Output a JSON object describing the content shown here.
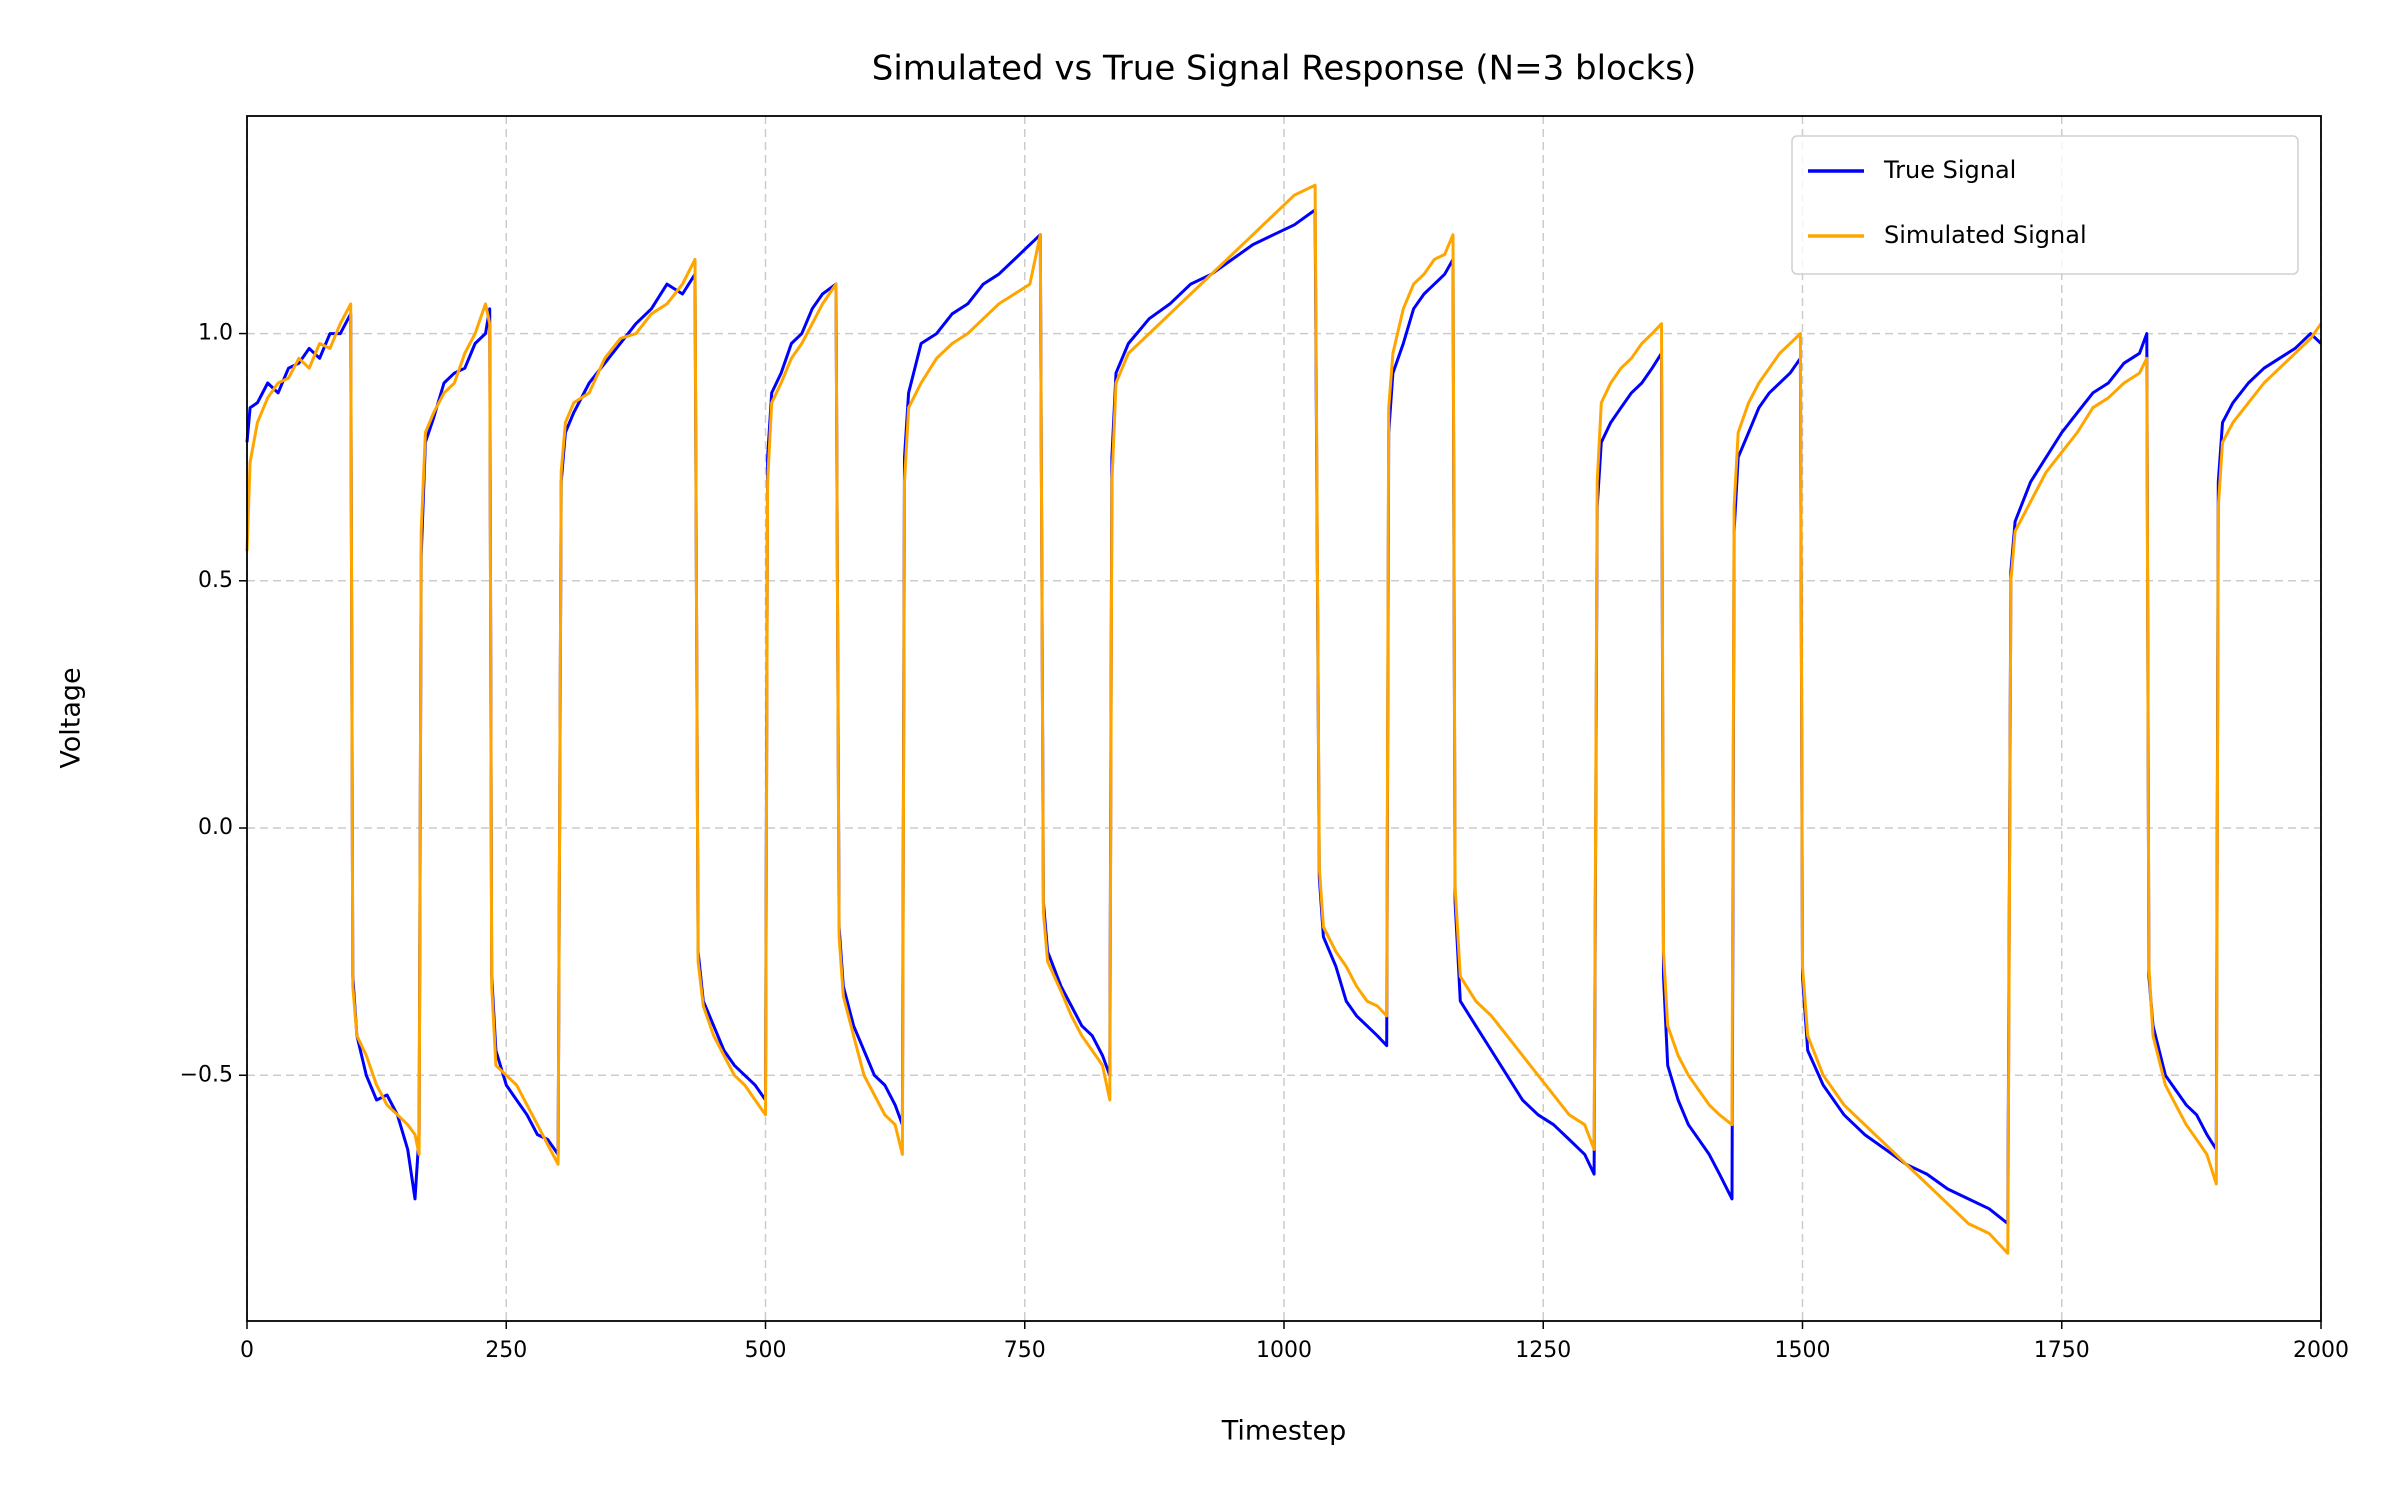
{
  "chart_data": {
    "type": "line",
    "title": "Simulated vs True Signal Response (N=3 blocks)",
    "x_label": "Timestep",
    "y_label": "Voltage",
    "x": [
      0,
      3,
      10,
      20,
      30,
      40,
      50,
      60,
      70,
      80,
      90,
      100,
      102,
      106,
      115,
      125,
      135,
      145,
      155,
      162,
      166,
      168,
      172,
      180,
      190,
      200,
      210,
      220,
      230,
      234,
      236,
      240,
      250,
      260,
      270,
      280,
      290,
      300,
      303,
      307,
      315,
      330,
      345,
      360,
      375,
      390,
      405,
      420,
      432,
      435,
      440,
      450,
      460,
      470,
      480,
      490,
      500,
      502,
      506,
      515,
      525,
      535,
      545,
      555,
      568,
      571,
      575,
      585,
      595,
      605,
      615,
      625,
      632,
      634,
      638,
      650,
      665,
      680,
      695,
      710,
      725,
      740,
      755,
      765,
      768,
      772,
      785,
      795,
      805,
      815,
      825,
      832,
      834,
      838,
      850,
      870,
      890,
      910,
      930,
      950,
      970,
      990,
      1010,
      1030,
      1034,
      1038,
      1050,
      1060,
      1070,
      1080,
      1090,
      1099,
      1101,
      1105,
      1115,
      1125,
      1135,
      1145,
      1155,
      1163,
      1165,
      1170,
      1185,
      1200,
      1215,
      1230,
      1245,
      1260,
      1275,
      1290,
      1299,
      1302,
      1306,
      1315,
      1325,
      1335,
      1345,
      1355,
      1364,
      1366,
      1370,
      1380,
      1390,
      1400,
      1410,
      1420,
      1432,
      1434,
      1438,
      1448,
      1458,
      1468,
      1478,
      1488,
      1498,
      1500,
      1505,
      1520,
      1540,
      1560,
      1580,
      1600,
      1620,
      1640,
      1660,
      1680,
      1698,
      1701,
      1705,
      1720,
      1735,
      1750,
      1765,
      1780,
      1795,
      1810,
      1825,
      1832,
      1834,
      1838,
      1850,
      1860,
      1870,
      1880,
      1890,
      1899,
      1901,
      1905,
      1915,
      1930,
      1945,
      1960,
      1975,
      1990,
      2000
    ],
    "series": [
      {
        "name": "True Signal",
        "color": "#0000ff",
        "values": [
          0.78,
          0.85,
          0.86,
          0.9,
          0.88,
          0.93,
          0.94,
          0.97,
          0.95,
          1.0,
          1.0,
          1.04,
          -0.3,
          -0.42,
          -0.5,
          -0.55,
          -0.54,
          -0.58,
          -0.65,
          -0.75,
          -0.62,
          0.55,
          0.78,
          0.83,
          0.9,
          0.92,
          0.93,
          0.98,
          1.0,
          1.05,
          -0.3,
          -0.45,
          -0.52,
          -0.55,
          -0.58,
          -0.62,
          -0.63,
          -0.66,
          0.7,
          0.8,
          0.84,
          0.9,
          0.94,
          0.98,
          1.02,
          1.05,
          1.1,
          1.08,
          1.12,
          -0.25,
          -0.35,
          -0.4,
          -0.45,
          -0.48,
          -0.5,
          -0.52,
          -0.55,
          0.75,
          0.88,
          0.92,
          0.98,
          1.0,
          1.05,
          1.08,
          1.1,
          -0.2,
          -0.32,
          -0.4,
          -0.45,
          -0.5,
          -0.52,
          -0.56,
          -0.6,
          0.75,
          0.88,
          0.98,
          1.0,
          1.04,
          1.06,
          1.1,
          1.12,
          1.15,
          1.18,
          1.2,
          -0.15,
          -0.25,
          -0.32,
          -0.36,
          -0.4,
          -0.42,
          -0.46,
          -0.5,
          0.75,
          0.92,
          0.98,
          1.03,
          1.06,
          1.1,
          1.12,
          1.15,
          1.18,
          1.2,
          1.22,
          1.25,
          -0.1,
          -0.22,
          -0.28,
          -0.35,
          -0.38,
          -0.4,
          -0.42,
          -0.44,
          0.8,
          0.92,
          0.98,
          1.05,
          1.08,
          1.1,
          1.12,
          1.15,
          -0.15,
          -0.35,
          -0.4,
          -0.45,
          -0.5,
          -0.55,
          -0.58,
          -0.6,
          -0.63,
          -0.66,
          -0.7,
          0.65,
          0.78,
          0.82,
          0.85,
          0.88,
          0.9,
          0.93,
          0.96,
          -0.3,
          -0.48,
          -0.55,
          -0.6,
          -0.63,
          -0.66,
          -0.7,
          -0.75,
          0.6,
          0.75,
          0.8,
          0.85,
          0.88,
          0.9,
          0.92,
          0.95,
          -0.3,
          -0.45,
          -0.52,
          -0.58,
          -0.62,
          -0.65,
          -0.68,
          -0.7,
          -0.73,
          -0.75,
          -0.77,
          -0.8,
          0.52,
          0.62,
          0.7,
          0.75,
          0.8,
          0.84,
          0.88,
          0.9,
          0.94,
          0.96,
          1.0,
          -0.3,
          -0.4,
          -0.5,
          -0.53,
          -0.56,
          -0.58,
          -0.62,
          -0.65,
          0.7,
          0.82,
          0.86,
          0.9,
          0.93,
          0.95,
          0.97,
          1.0,
          0.98
        ]
      },
      {
        "name": "Simulated Signal",
        "color": "#ffa500",
        "values": [
          0.56,
          0.74,
          0.82,
          0.87,
          0.9,
          0.91,
          0.95,
          0.93,
          0.98,
          0.97,
          1.02,
          1.06,
          -0.32,
          -0.42,
          -0.46,
          -0.52,
          -0.56,
          -0.58,
          -0.6,
          -0.62,
          -0.66,
          0.6,
          0.8,
          0.84,
          0.88,
          0.9,
          0.96,
          1.0,
          1.06,
          1.02,
          -0.32,
          -0.48,
          -0.5,
          -0.52,
          -0.56,
          -0.6,
          -0.64,
          -0.68,
          0.72,
          0.82,
          0.86,
          0.88,
          0.95,
          0.99,
          1.0,
          1.04,
          1.06,
          1.1,
          1.15,
          -0.27,
          -0.36,
          -0.42,
          -0.46,
          -0.5,
          -0.52,
          -0.55,
          -0.58,
          0.7,
          0.86,
          0.9,
          0.95,
          0.98,
          1.02,
          1.06,
          1.1,
          -0.22,
          -0.34,
          -0.42,
          -0.5,
          -0.54,
          -0.58,
          -0.6,
          -0.66,
          0.7,
          0.85,
          0.9,
          0.95,
          0.98,
          1.0,
          1.03,
          1.06,
          1.08,
          1.1,
          1.2,
          -0.17,
          -0.27,
          -0.33,
          -0.38,
          -0.42,
          -0.45,
          -0.48,
          -0.55,
          0.7,
          0.9,
          0.96,
          1.0,
          1.04,
          1.08,
          1.12,
          1.16,
          1.2,
          1.24,
          1.28,
          1.3,
          -0.08,
          -0.2,
          -0.25,
          -0.28,
          -0.32,
          -0.35,
          -0.36,
          -0.38,
          0.85,
          0.96,
          1.05,
          1.1,
          1.12,
          1.15,
          1.16,
          1.2,
          -0.12,
          -0.3,
          -0.35,
          -0.38,
          -0.42,
          -0.46,
          -0.5,
          -0.54,
          -0.58,
          -0.6,
          -0.65,
          0.7,
          0.86,
          0.9,
          0.93,
          0.95,
          0.98,
          1.0,
          1.02,
          -0.25,
          -0.4,
          -0.46,
          -0.5,
          -0.53,
          -0.56,
          -0.58,
          -0.6,
          0.65,
          0.8,
          0.86,
          0.9,
          0.93,
          0.96,
          0.98,
          1.0,
          -0.28,
          -0.42,
          -0.5,
          -0.56,
          -0.6,
          -0.64,
          -0.68,
          -0.72,
          -0.76,
          -0.8,
          -0.82,
          -0.86,
          0.5,
          0.6,
          0.66,
          0.72,
          0.76,
          0.8,
          0.85,
          0.87,
          0.9,
          0.92,
          0.95,
          -0.28,
          -0.42,
          -0.52,
          -0.56,
          -0.6,
          -0.63,
          -0.66,
          -0.72,
          0.65,
          0.78,
          0.82,
          0.86,
          0.9,
          0.93,
          0.96,
          0.99,
          1.02
        ]
      }
    ],
    "xlim": [
      0,
      2000
    ],
    "xticks": [
      0,
      250,
      500,
      750,
      1000,
      1250,
      1500,
      1750,
      2000
    ],
    "ylim": [
      -0.997,
      1.44
    ],
    "yticks": [
      {
        "value": -0.5,
        "label": "−0.5"
      },
      {
        "value": 0,
        "label": "0.0"
      },
      0.5,
      {
        "value": 1,
        "label": "1.0"
      }
    ],
    "grid": true,
    "legend": "upper right"
  }
}
